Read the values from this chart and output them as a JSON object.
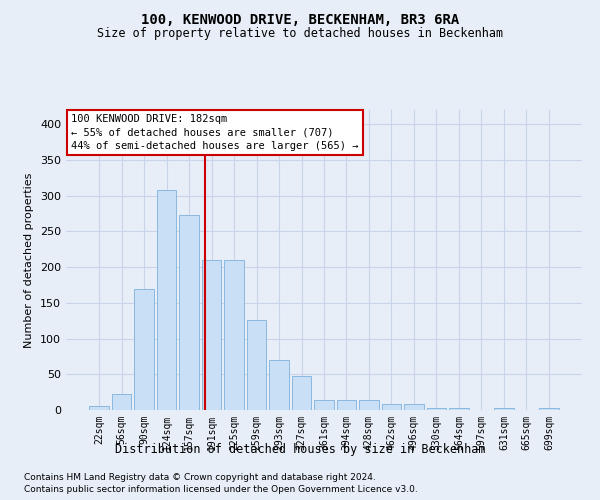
{
  "title": "100, KENWOOD DRIVE, BECKENHAM, BR3 6RA",
  "subtitle": "Size of property relative to detached houses in Beckenham",
  "xlabel": "Distribution of detached houses by size in Beckenham",
  "ylabel": "Number of detached properties",
  "bar_labels": [
    "22sqm",
    "56sqm",
    "90sqm",
    "124sqm",
    "157sqm",
    "191sqm",
    "225sqm",
    "259sqm",
    "293sqm",
    "327sqm",
    "361sqm",
    "394sqm",
    "428sqm",
    "462sqm",
    "496sqm",
    "530sqm",
    "564sqm",
    "597sqm",
    "631sqm",
    "665sqm",
    "699sqm"
  ],
  "bar_values": [
    5,
    22,
    170,
    308,
    273,
    210,
    210,
    126,
    70,
    47,
    14,
    14,
    14,
    8,
    8,
    3,
    3,
    0,
    3,
    0,
    3
  ],
  "bar_color": "#c9dff5",
  "bar_edge_color": "#89b8df",
  "grid_color": "#c8d4e8",
  "background_color": "#e8eef8",
  "vline_color": "#cc0000",
  "vline_pos": 4.72,
  "annotation_text": "100 KENWOOD DRIVE: 182sqm\n← 55% of detached houses are smaller (707)\n44% of semi-detached houses are larger (565) →",
  "annotation_box_color": "#ffffff",
  "annotation_box_edge": "#cc0000",
  "ylim": [
    0,
    420
  ],
  "yticks": [
    0,
    50,
    100,
    150,
    200,
    250,
    300,
    350,
    400
  ],
  "footer1": "Contains HM Land Registry data © Crown copyright and database right 2024.",
  "footer2": "Contains public sector information licensed under the Open Government Licence v3.0."
}
